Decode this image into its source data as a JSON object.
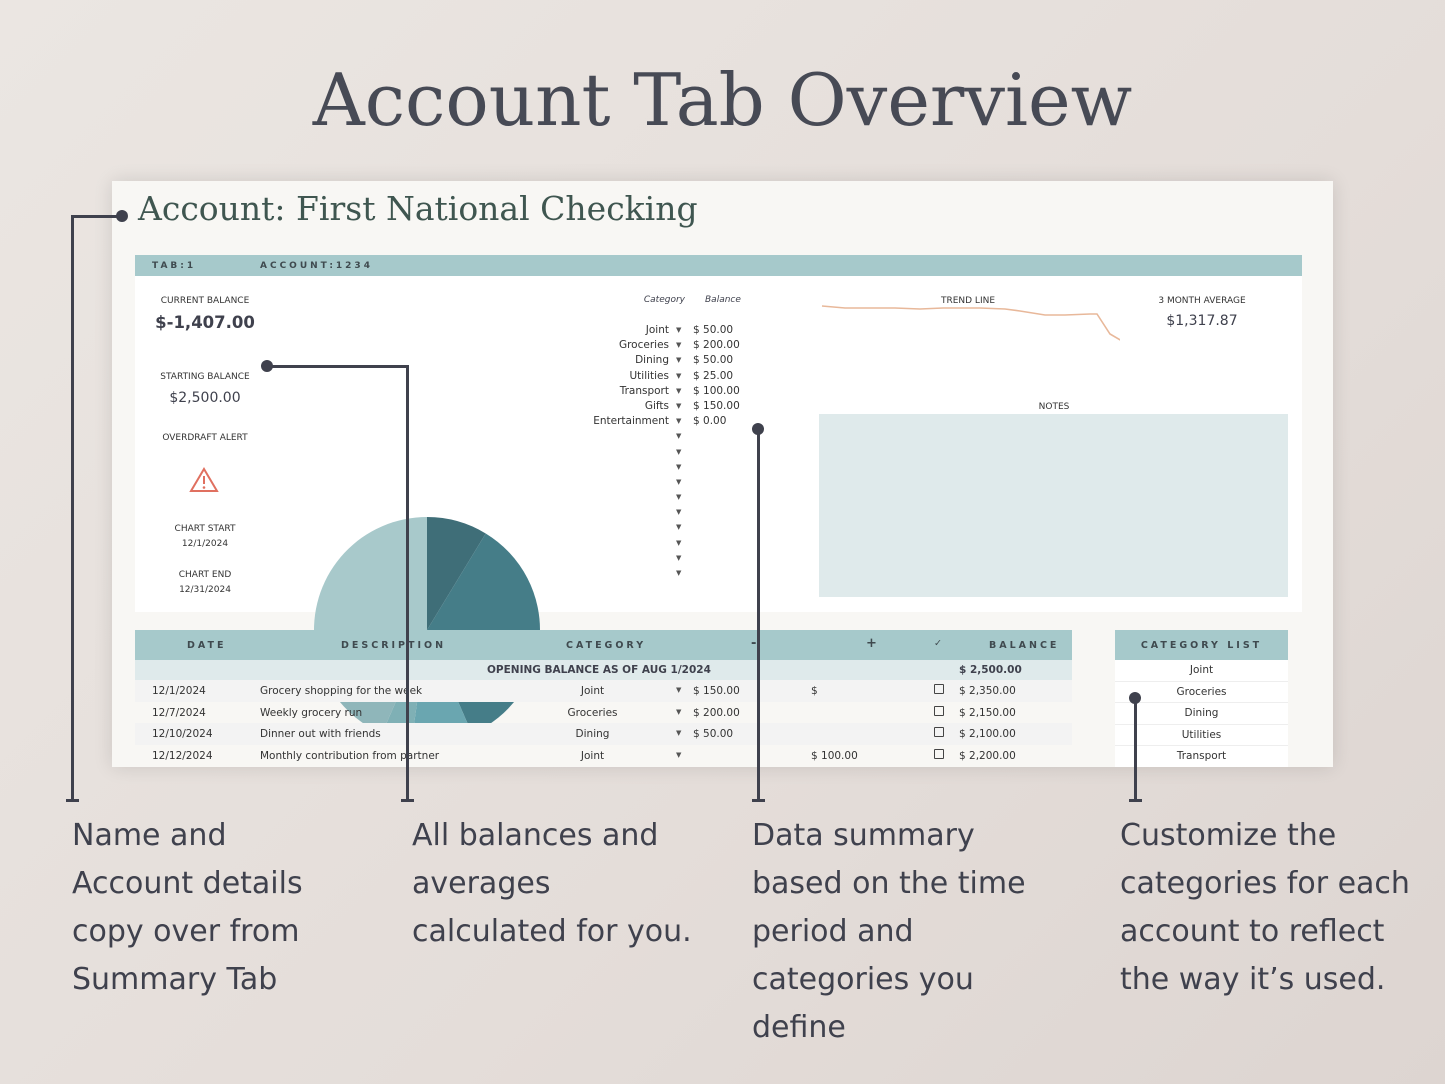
{
  "title": "Account Tab Overview",
  "account_title": "Account: First National Checking",
  "topbar": {
    "tab": "TAB:1",
    "account": "ACCOUNT:1234"
  },
  "summary": {
    "current_balance_label": "CURRENT BALANCE",
    "current_balance": "$-1,407.00",
    "starting_balance_label": "STARTING BALANCE",
    "starting_balance": "$2,500.00",
    "overdraft_label": "OVERDRAFT ALERT",
    "overdraft_icon": "warning-triangle-icon",
    "chart_start_label": "CHART START",
    "chart_start": "12/1/2024",
    "chart_end_label": "CHART END",
    "chart_end": "12/31/2024"
  },
  "categories": {
    "header_category": "Category",
    "header_balance": "Balance",
    "items": [
      {
        "name": "Joint",
        "balance": "$  50.00",
        "value": 50
      },
      {
        "name": "Groceries",
        "balance": "$  200.00",
        "value": 200
      },
      {
        "name": "Dining",
        "balance": "$  50.00",
        "value": 50
      },
      {
        "name": "Utilities",
        "balance": "$  25.00",
        "value": 25
      },
      {
        "name": "Transport",
        "balance": "$  100.00",
        "value": 100
      },
      {
        "name": "Gifts",
        "balance": "$  150.00",
        "value": 150
      },
      {
        "name": "Entertainment",
        "balance": "$  0.00",
        "value": 0
      }
    ],
    "empty_rows": 10,
    "pie_colors": [
      "#3f6e78",
      "#457d88",
      "#6aa6b0",
      "#7fb0b5",
      "#8fb6ba",
      "#a8c9cb",
      "#c8dadb"
    ]
  },
  "trend": {
    "label": "TREND LINE",
    "color": "#e8b89a"
  },
  "average": {
    "label": "3 MONTH AVERAGE",
    "value": "$1,317.87"
  },
  "notes": {
    "label": "NOTES",
    "color": "#dfeaeb"
  },
  "ledger": {
    "headers": {
      "date": "DATE",
      "description": "DESCRIPTION",
      "category": "CATEGORY",
      "minus": "-",
      "plus": "+",
      "check": "✓",
      "balance": "BALANCE"
    },
    "opening_label": "OPENING BALANCE AS OF AUG 1/2024",
    "opening_balance": "$ 2,500.00",
    "rows": [
      {
        "date": "12/1/2024",
        "description": "Grocery shopping for the week",
        "category": "Joint",
        "debit": "$  150.00",
        "credit": "$",
        "balance": "$  2,350.00"
      },
      {
        "date": "12/7/2024",
        "description": "Weekly grocery run",
        "category": "Groceries",
        "debit": "$  200.00",
        "credit": "",
        "balance": "$  2,150.00"
      },
      {
        "date": "12/10/2024",
        "description": "Dinner out with friends",
        "category": "Dining",
        "debit": "$  50.00",
        "credit": "",
        "balance": "$  2,100.00"
      },
      {
        "date": "12/12/2024",
        "description": "Monthly contribution from partner",
        "category": "Joint",
        "debit": "",
        "credit": "$  100.00",
        "balance": "$  2,200.00"
      }
    ]
  },
  "category_list": {
    "header": "CATEGORY LIST",
    "items": [
      "Joint",
      "Groceries",
      "Dining",
      "Utilities",
      "Transport"
    ]
  },
  "callouts": [
    "Name and Account details copy over from Summary Tab",
    "All balances and averages calculated for you.",
    "Data summary based on the time period and categories you define",
    "Customize the categories for each account to reflect the way it’s used."
  ]
}
